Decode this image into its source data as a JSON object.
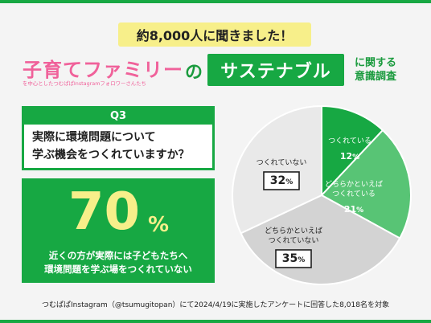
{
  "banner": "約8,000人に聞きました！",
  "header": {
    "family": "子育てファミリー",
    "sub": "を中心としたつむぱぱInstagramフォロワーさんたち",
    "no": "の",
    "theme": "サステナブル",
    "survey_line1": "に関する",
    "survey_line2": "意識調査"
  },
  "question": {
    "label": "Q3",
    "line1": "実際に環境問題について",
    "line2": "学ぶ機会をつくれていますか？"
  },
  "answer": {
    "value": "70",
    "unit": "%",
    "line1": "近くの方が実際には子どもたちへ",
    "line2": "環境問題を学ぶ場をつくれていない"
  },
  "footnote": "つむぱぱInstagram（@tsumugitopan）にて2024/4/19に実施したアンケートに回答した8,018名を対象",
  "colors": {
    "accent": "#17a843",
    "light_green": "#58c475",
    "gray": "#d3d3d3",
    "light_gray": "#e9e9e9",
    "pink": "#f0619a",
    "yellow": "#f7ef8a"
  },
  "chart_data": {
    "type": "pie",
    "slices": [
      {
        "label": "つくれている",
        "value": 12,
        "value_label": "12",
        "unit": "%"
      },
      {
        "label": "どちらかといえば\nつくれている",
        "value": 21,
        "value_label": "21",
        "unit": "%"
      },
      {
        "label": "どちらかといえば\nつくれていない",
        "value": 35,
        "value_label": "35",
        "unit": "%"
      },
      {
        "label": "つくれていない",
        "value": 32,
        "value_label": "32",
        "unit": "%"
      }
    ]
  }
}
